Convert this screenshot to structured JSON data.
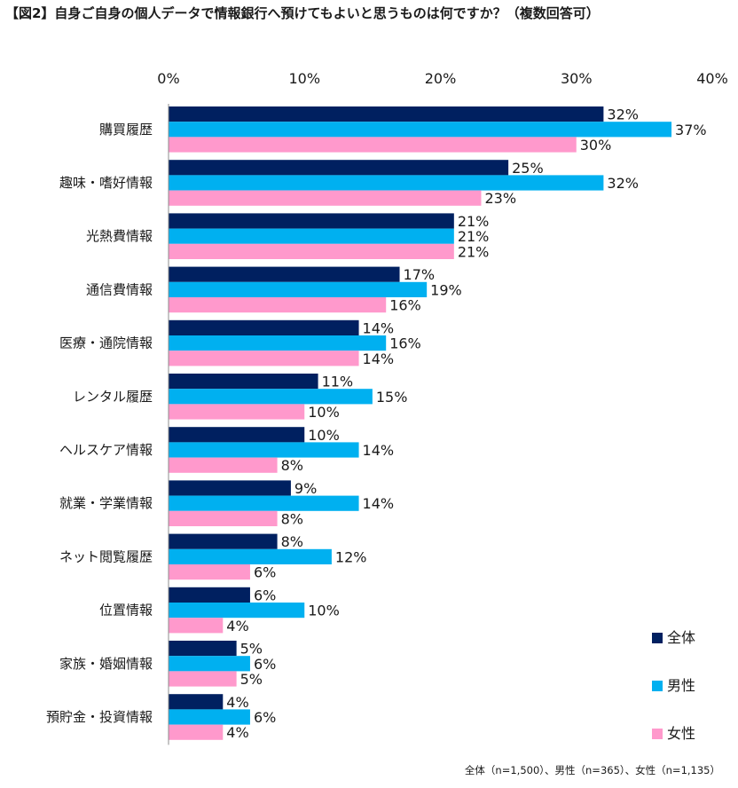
{
  "title": "【図2】自身ご自身の個人データで情報銀行へ預けてもよいと思うものは何ですか？（複数回答可）",
  "footer": "全体（n=1,500）、男性（n=365）、女性（n=1,135）",
  "chart_data": {
    "type": "bar",
    "orientation": "horizontal",
    "title": "【図2】自身ご自身の個人データで情報銀行へ預けてもよいと思うものは何ですか？（複数回答可）",
    "xlim": [
      0,
      40
    ],
    "x_ticks": [
      "0%",
      "10%",
      "20%",
      "30%",
      "40%"
    ],
    "x_tick_values": [
      0,
      10,
      20,
      30,
      40
    ],
    "grid": false,
    "legend_position": "bottom-right",
    "categories": [
      "購買履歴",
      "趣味・嗜好情報",
      "光熱費情報",
      "通信費情報",
      "医療・通院情報",
      "レンタル履歴",
      "ヘルスケア情報",
      "就業・学業情報",
      "ネット閲覧履歴",
      "位置情報",
      "家族・婚姻情報",
      "預貯金・投資情報"
    ],
    "series": [
      {
        "name": "全体",
        "color": "#002060",
        "values": [
          32,
          25,
          21,
          17,
          14,
          11,
          10,
          9,
          8,
          6,
          5,
          4
        ],
        "labels": [
          "32%",
          "25%",
          "21%",
          "17%",
          "14%",
          "11%",
          "10%",
          "9%",
          "8%",
          "6%",
          "5%",
          "4%"
        ]
      },
      {
        "name": "男性",
        "color": "#00B0F0",
        "values": [
          37,
          32,
          21,
          19,
          16,
          15,
          14,
          14,
          12,
          10,
          6,
          6
        ],
        "labels": [
          "37%",
          "32%",
          "21%",
          "19%",
          "16%",
          "15%",
          "14%",
          "14%",
          "12%",
          "10%",
          "6%",
          "6%"
        ]
      },
      {
        "name": "女性",
        "color": "#FF99CC",
        "values": [
          30,
          23,
          21,
          16,
          14,
          10,
          8,
          8,
          6,
          4,
          5,
          4
        ],
        "labels": [
          "30%",
          "23%",
          "21%",
          "16%",
          "14%",
          "10%",
          "8%",
          "8%",
          "6%",
          "4%",
          "5%",
          "4%"
        ]
      }
    ]
  }
}
